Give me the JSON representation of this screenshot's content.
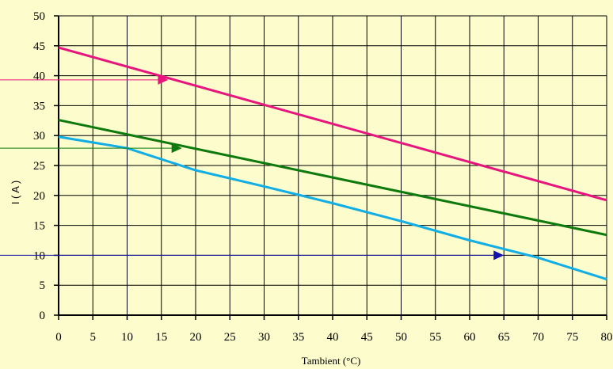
{
  "chart_data": {
    "type": "line",
    "xlabel": "Tambient (°C)",
    "ylabel": "I ( A )",
    "xlim": [
      0,
      80
    ],
    "ylim": [
      0,
      50
    ],
    "x_ticks": [
      0,
      5,
      10,
      15,
      20,
      25,
      30,
      35,
      40,
      45,
      50,
      55,
      60,
      65,
      70,
      75,
      80
    ],
    "y_ticks": [
      0,
      5,
      10,
      15,
      20,
      25,
      30,
      35,
      40,
      45,
      50
    ],
    "grid": true,
    "series": [
      {
        "color": "#e8157e",
        "x": [
          0,
          80
        ],
        "y": [
          44.7,
          19.2
        ]
      },
      {
        "color": "#0e7a0e",
        "x": [
          0,
          80
        ],
        "y": [
          32.6,
          13.4
        ]
      },
      {
        "color": "#11aee6",
        "x": [
          0,
          10,
          20,
          30,
          40,
          50,
          60,
          70,
          80
        ],
        "y": [
          29.8,
          27.9,
          24.2,
          21.5,
          18.7,
          15.7,
          12.5,
          9.6,
          6.0
        ]
      }
    ],
    "arrows": [
      {
        "color": "#e8157e",
        "x_end": 16,
        "y": 39.3
      },
      {
        "color": "#0e7a0e",
        "x_end": 18,
        "y": 27.9
      },
      {
        "color": "#1212a8",
        "x_end": 65,
        "y": 10
      }
    ]
  }
}
